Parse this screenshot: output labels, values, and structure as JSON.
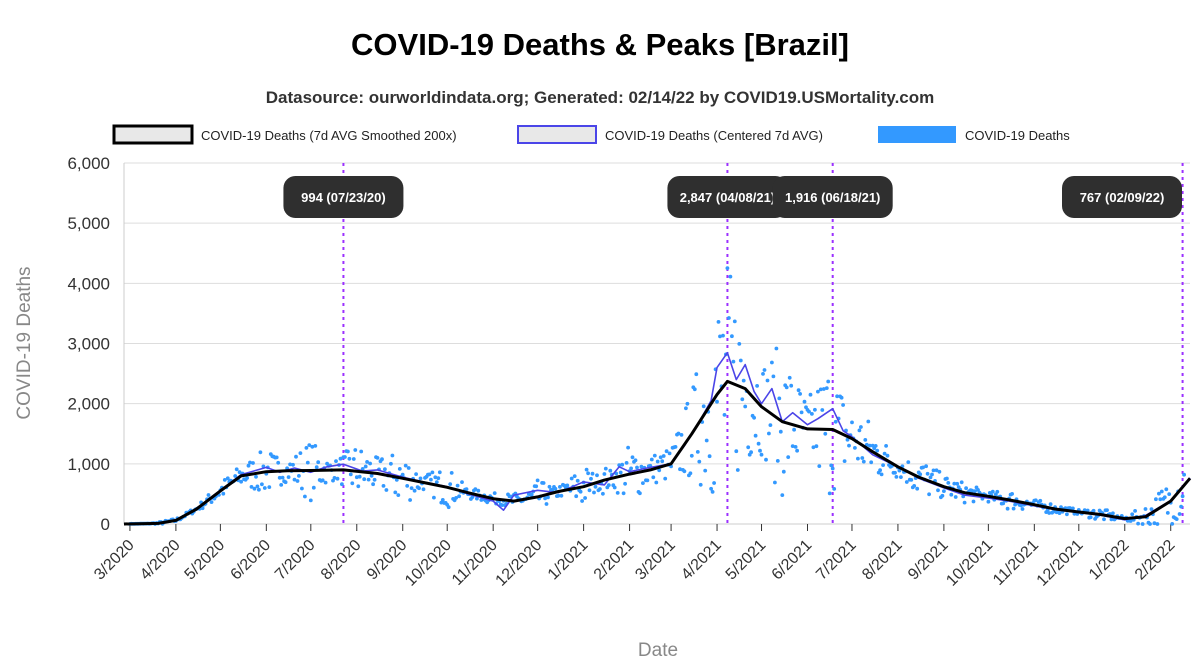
{
  "chart_data": {
    "type": "line",
    "title": "COVID-19 Deaths & Peaks [Brazil]",
    "subtitle": "Datasource: ourworldindata.org; Generated: 02/14/22 by COVID19.USMortality.com",
    "xlabel": "Date",
    "ylabel": "COVID-19 Deaths",
    "ylim": [
      0,
      6000
    ],
    "yticks": [
      0,
      1000,
      2000,
      3000,
      4000,
      5000,
      6000
    ],
    "ytick_labels": [
      "0",
      "1,000",
      "2,000",
      "3,000",
      "4,000",
      "5,000",
      "6,000"
    ],
    "x_start": "2020-02-26",
    "x_end": "2022-02-14",
    "xtick_labels": [
      "3/2020",
      "4/2020",
      "5/2020",
      "6/2020",
      "7/2020",
      "8/2020",
      "9/2020",
      "10/2020",
      "11/2020",
      "12/2020",
      "1/2021",
      "2/2021",
      "3/2021",
      "4/2021",
      "5/2021",
      "6/2021",
      "7/2021",
      "8/2021",
      "9/2021",
      "10/2021",
      "11/2021",
      "12/2021",
      "1/2022",
      "2/2022"
    ],
    "xtick_dates": [
      "2020-03-01",
      "2020-04-01",
      "2020-05-01",
      "2020-06-01",
      "2020-07-01",
      "2020-08-01",
      "2020-09-01",
      "2020-10-01",
      "2020-11-01",
      "2020-12-01",
      "2021-01-01",
      "2021-02-01",
      "2021-03-01",
      "2021-04-01",
      "2021-05-01",
      "2021-06-01",
      "2021-07-01",
      "2021-08-01",
      "2021-09-01",
      "2021-10-01",
      "2021-11-01",
      "2021-12-01",
      "2022-01-01",
      "2022-02-01"
    ],
    "grid": true,
    "legend_position": "top",
    "series": [
      {
        "name": "COVID-19 Deaths (7d AVG Smoothed 200x)",
        "style": "line",
        "color": "#000000",
        "x": [
          "2020-02-26",
          "2020-03-20",
          "2020-04-01",
          "2020-04-15",
          "2020-05-01",
          "2020-05-15",
          "2020-06-01",
          "2020-06-15",
          "2020-07-01",
          "2020-07-23",
          "2020-08-15",
          "2020-09-01",
          "2020-09-15",
          "2020-10-01",
          "2020-10-15",
          "2020-11-01",
          "2020-11-15",
          "2020-12-01",
          "2020-12-15",
          "2021-01-01",
          "2021-01-15",
          "2021-02-01",
          "2021-02-15",
          "2021-03-01",
          "2021-03-15",
          "2021-04-01",
          "2021-04-08",
          "2021-04-20",
          "2021-05-01",
          "2021-05-15",
          "2021-06-01",
          "2021-06-18",
          "2021-07-01",
          "2021-07-15",
          "2021-08-01",
          "2021-08-15",
          "2021-09-01",
          "2021-09-15",
          "2021-10-01",
          "2021-10-15",
          "2021-11-01",
          "2021-11-15",
          "2021-12-01",
          "2021-12-15",
          "2022-01-01",
          "2022-01-15",
          "2022-02-01",
          "2022-02-14"
        ],
        "y": [
          0,
          10,
          60,
          250,
          550,
          800,
          870,
          885,
          890,
          900,
          840,
          760,
          690,
          610,
          520,
          420,
          380,
          450,
          540,
          620,
          730,
          830,
          900,
          1000,
          1500,
          2150,
          2370,
          2250,
          1950,
          1700,
          1580,
          1570,
          1420,
          1200,
          950,
          780,
          620,
          520,
          460,
          400,
          320,
          250,
          200,
          160,
          90,
          120,
          380,
          760
        ]
      },
      {
        "name": "COVID-19 Deaths (Centered 7d AVG)",
        "style": "line",
        "color": "#4b45e8",
        "x": [
          "2020-02-26",
          "2020-03-20",
          "2020-04-01",
          "2020-04-15",
          "2020-05-01",
          "2020-05-15",
          "2020-06-01",
          "2020-06-10",
          "2020-06-20",
          "2020-07-01",
          "2020-07-12",
          "2020-07-23",
          "2020-08-05",
          "2020-08-15",
          "2020-09-01",
          "2020-09-15",
          "2020-10-01",
          "2020-10-15",
          "2020-11-01",
          "2020-11-08",
          "2020-11-15",
          "2020-12-01",
          "2020-12-15",
          "2021-01-01",
          "2021-01-15",
          "2021-01-25",
          "2021-02-01",
          "2021-02-15",
          "2021-03-01",
          "2021-03-10",
          "2021-03-20",
          "2021-03-28",
          "2021-04-01",
          "2021-04-08",
          "2021-04-14",
          "2021-04-20",
          "2021-04-26",
          "2021-05-01",
          "2021-05-08",
          "2021-05-15",
          "2021-05-22",
          "2021-06-01",
          "2021-06-08",
          "2021-06-18",
          "2021-06-25",
          "2021-07-01",
          "2021-07-15",
          "2021-08-01",
          "2021-08-15",
          "2021-09-01",
          "2021-09-15",
          "2021-10-01",
          "2021-10-15",
          "2021-11-01",
          "2021-11-15",
          "2021-12-01",
          "2021-12-15",
          "2022-01-01",
          "2022-01-15",
          "2022-02-01",
          "2022-02-14"
        ],
        "y": [
          0,
          12,
          70,
          260,
          560,
          820,
          940,
          860,
          930,
          860,
          950,
          994,
          880,
          900,
          780,
          700,
          620,
          500,
          380,
          230,
          480,
          560,
          520,
          700,
          650,
          950,
          870,
          940,
          1000,
          1300,
          1700,
          2050,
          2600,
          2847,
          2400,
          2650,
          2200,
          2000,
          2250,
          1700,
          1850,
          1650,
          1750,
          1916,
          1550,
          1450,
          1150,
          950,
          760,
          600,
          480,
          430,
          380,
          300,
          240,
          190,
          150,
          70,
          140,
          390,
          767
        ]
      },
      {
        "name": "COVID-19 Deaths",
        "style": "scatter",
        "color": "#3399ff",
        "x": [
          "2020-03-01",
          "2020-03-15",
          "2020-04-01",
          "2020-04-15",
          "2020-05-01",
          "2020-05-15",
          "2020-06-01",
          "2020-06-15",
          "2020-07-01",
          "2020-07-15",
          "2020-08-01",
          "2020-08-15",
          "2020-09-01",
          "2020-09-15",
          "2020-10-01",
          "2020-10-15",
          "2020-11-01",
          "2020-11-15",
          "2020-12-01",
          "2020-12-15",
          "2021-01-01",
          "2021-01-15",
          "2021-02-01",
          "2021-02-15",
          "2021-03-01",
          "2021-03-15",
          "2021-04-01",
          "2021-04-06",
          "2021-04-15",
          "2021-05-01",
          "2021-05-15",
          "2021-06-01",
          "2021-06-15",
          "2021-07-01",
          "2021-07-15",
          "2021-08-01",
          "2021-08-15",
          "2021-09-01",
          "2021-09-15",
          "2021-10-01",
          "2021-10-15",
          "2021-11-01",
          "2021-11-15",
          "2021-12-01",
          "2021-12-15",
          "2022-01-01",
          "2022-01-15",
          "2022-02-01",
          "2022-02-10"
        ],
        "y": [
          0,
          10,
          80,
          250,
          600,
          850,
          1100,
          900,
          1250,
          850,
          1200,
          950,
          1100,
          700,
          850,
          500,
          450,
          300,
          650,
          500,
          900,
          600,
          1200,
          1000,
          1100,
          2000,
          3600,
          4100,
          3500,
          2400,
          2700,
          1800,
          2500,
          1700,
          1500,
          900,
          1000,
          700,
          600,
          450,
          500,
          350,
          300,
          200,
          250,
          100,
          300,
          700,
          1100
        ]
      }
    ],
    "peaks": [
      {
        "label": "994 (07/23/20)",
        "date": "2020-07-23",
        "value": 994
      },
      {
        "label": "2,847 (04/08/21)",
        "date": "2021-04-08",
        "value": 2847
      },
      {
        "label": "1,916 (06/18/21)",
        "date": "2021-06-18",
        "value": 1916
      },
      {
        "label": "767 (02/09/22)",
        "date": "2022-02-09",
        "value": 767
      }
    ],
    "peak_line_color": "#9b30ff"
  }
}
